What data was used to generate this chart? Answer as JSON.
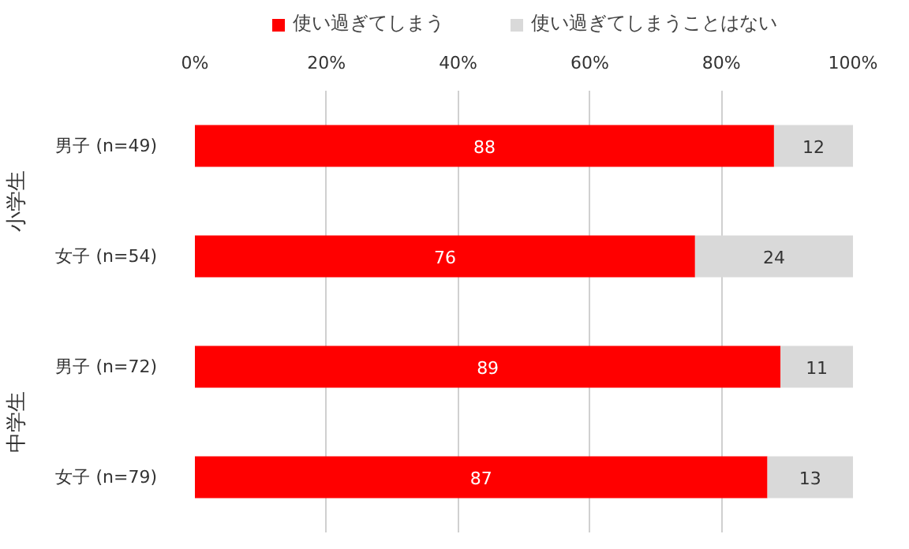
{
  "chart_data": {
    "type": "bar",
    "orientation": "horizontal",
    "stacked": true,
    "categories": [
      "男子 (n=49)",
      "女子 (n=54)",
      "男子 (n=72)",
      "女子 (n=79)"
    ],
    "series": [
      {
        "name": "使い過ぎてしまう",
        "color": "#ff0000",
        "values": [
          88,
          76,
          89,
          87
        ]
      },
      {
        "name": "使い過ぎてしまうことはない",
        "color": "#d9d9d9",
        "values": [
          12,
          24,
          11,
          13
        ]
      }
    ],
    "xlim": [
      0,
      100
    ],
    "xticks": [
      {
        "value": 0,
        "label": "0%"
      },
      {
        "value": 20,
        "label": "20%"
      },
      {
        "value": 40,
        "label": "40%"
      },
      {
        "value": 60,
        "label": "60%"
      },
      {
        "value": 80,
        "label": "80%"
      },
      {
        "value": 100,
        "label": "100%"
      }
    ],
    "grid": "x",
    "legend": "top",
    "data_labels": true,
    "annotations": [
      "小学生",
      "中学生"
    ]
  }
}
